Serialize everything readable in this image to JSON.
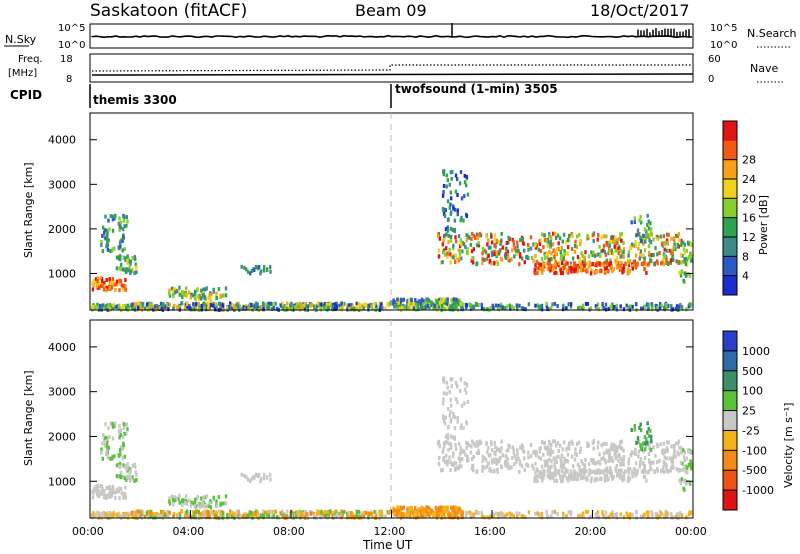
{
  "header": {
    "station": "Saskatoon (fitACF)",
    "beam": "Beam 09",
    "date": "18/Oct/2017"
  },
  "noise_panel": {
    "left_label": "N.Sky",
    "left_ticks": [
      "10^5",
      "10^0"
    ],
    "right_ticks": [
      "10^5",
      "10^0"
    ],
    "right_label": "N.Search"
  },
  "freq_panel": {
    "left_label_top": "Freq.",
    "left_label_bottom": "[MHz]",
    "left_ticks": [
      "18",
      "8"
    ],
    "right_ticks": [
      "60",
      "0"
    ],
    "right_label": "Nave"
  },
  "cpid": {
    "label": "CPID",
    "segments": [
      {
        "name": "themis 3300",
        "start_hour": 0
      },
      {
        "name": "twofsound (1-min) 3505",
        "start_hour": 12
      }
    ]
  },
  "chart_data": [
    {
      "type": "heatmap",
      "ylabel": "Slant Range [km]",
      "yticks": [
        "1000",
        "2000",
        "3000",
        "4000"
      ],
      "ylim": [
        180,
        4600
      ],
      "xlim": [
        0,
        24
      ],
      "colorbar": {
        "label": "Power [dB]",
        "ticks": [
          "4",
          "8",
          "12",
          "16",
          "20",
          "24",
          "28"
        ],
        "colors": [
          "#1a2ed0",
          "#2b58c4",
          "#3d8a86",
          "#2fa44f",
          "#86cf2c",
          "#f0d21c",
          "#f7a11a",
          "#f05a12",
          "#e01414"
        ]
      }
    },
    {
      "type": "heatmap",
      "ylabel": "Slant Range [km]",
      "yticks": [
        "1000",
        "2000",
        "3000",
        "4000"
      ],
      "ylim": [
        180,
        4600
      ],
      "xlim": [
        0,
        24
      ],
      "xlabel": "Time UT",
      "xticks": [
        "00:00",
        "04:00",
        "08:00",
        "12:00",
        "16:00",
        "20:00",
        "00:00"
      ],
      "colorbar": {
        "label": "Velocity [m s⁻¹]",
        "ticks": [
          "1000",
          "500",
          "100",
          "25",
          "-25",
          "-100",
          "-500",
          "-1000"
        ],
        "colors": [
          "#2a3fc8",
          "#2f6aa8",
          "#3c8f6a",
          "#58c23a",
          "#c8c8c4",
          "#f4b21a",
          "#f28a18",
          "#ee5214",
          "#dd1414"
        ]
      }
    }
  ]
}
